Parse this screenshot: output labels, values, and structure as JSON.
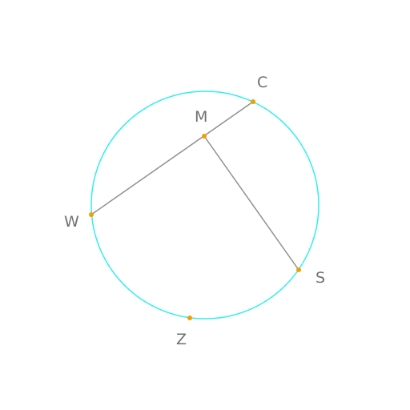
{
  "colors": {
    "background": "#ffffff",
    "circle": "#33eeee",
    "segment": "#909090",
    "point": "#f0a000",
    "label": "#707070"
  },
  "labels": {
    "C": "C",
    "M": "M",
    "W": "W",
    "S": "S",
    "Z": "Z"
  },
  "segments": [
    {
      "from": "W",
      "to": "C"
    },
    {
      "from": "M",
      "to": "S"
    }
  ]
}
